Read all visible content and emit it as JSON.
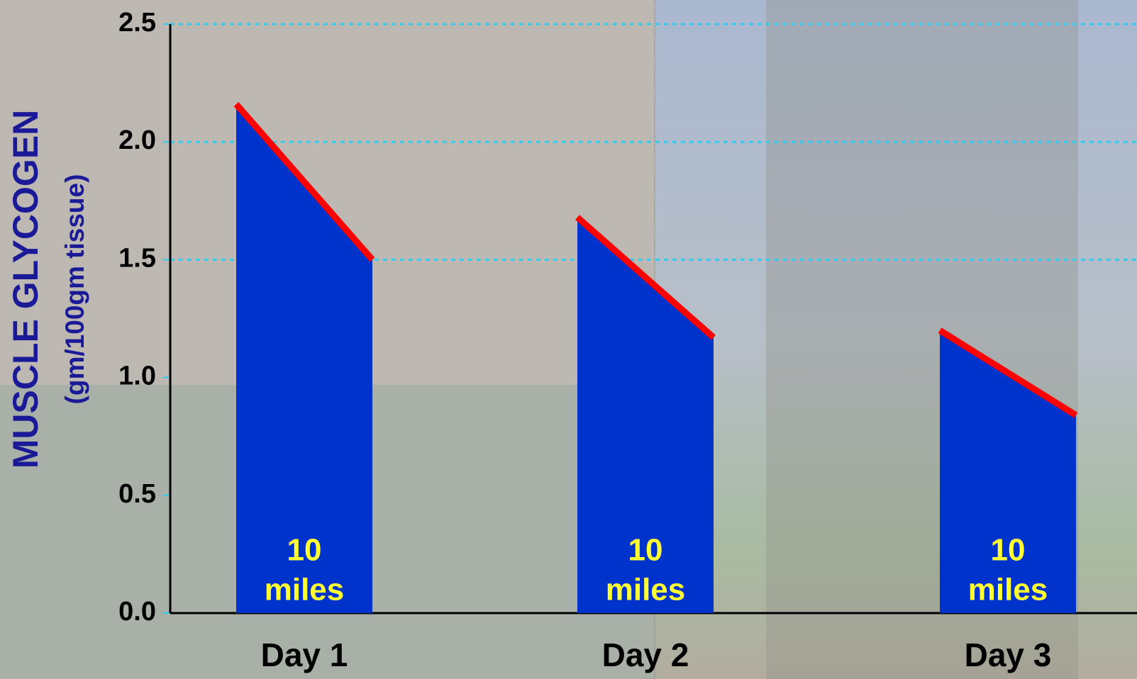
{
  "chart_data": {
    "type": "bar",
    "y_label": "MUSCLE GLYCOGEN",
    "y_sublabel": "(gm/100gm tissue)",
    "categories": [
      "Day 1",
      "Day 2",
      "Day 3"
    ],
    "start_values": [
      2.16,
      1.68,
      1.2
    ],
    "end_values": [
      1.5,
      1.17,
      0.84
    ],
    "bar_labels": [
      [
        "10",
        "miles"
      ],
      [
        "10",
        "miles"
      ],
      [
        "10",
        "miles"
      ]
    ],
    "color": "#0033cc",
    "slope_color": "#ff0000",
    "grid_color": "#33ccee",
    "ylim": [
      0,
      2.5
    ],
    "yticks": [
      {
        "value": 0,
        "label": "0.0"
      },
      0.5,
      {
        "value": 1,
        "label": "1.0"
      },
      1.5,
      {
        "value": 2,
        "label": "2.0"
      },
      2.5
    ],
    "grid_lines": [
      1.5,
      2,
      2.5
    ]
  }
}
